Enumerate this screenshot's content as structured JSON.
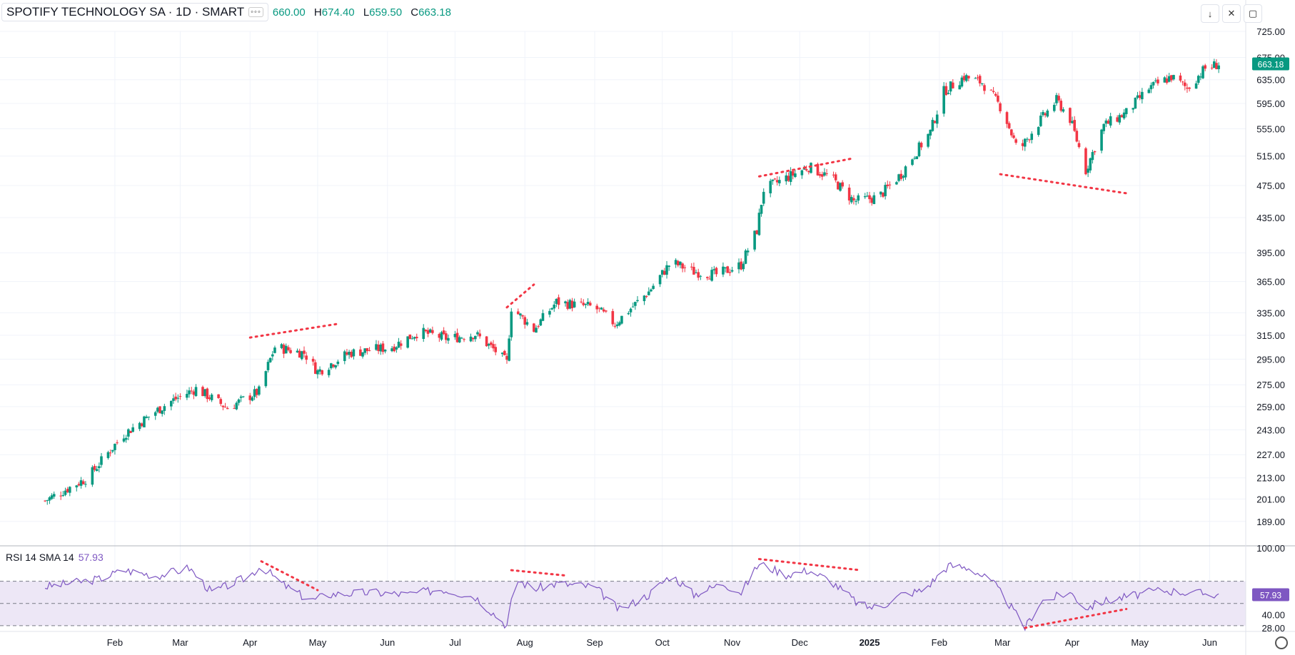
{
  "header": {
    "symbol": "SPOTIFY TECHNOLOGY SA · 1D · SMART",
    "menu_icon": "dots-icon",
    "ohlc": [
      {
        "k": "",
        "v": "660.00"
      },
      {
        "k": "H",
        "v": "674.40"
      },
      {
        "k": "L",
        "v": "659.50"
      },
      {
        "k": "C",
        "v": "663.18"
      }
    ]
  },
  "toolbar": [
    "arrow-down-icon",
    "collapse-icon",
    "maximize-icon"
  ],
  "colors": {
    "up": "#089981",
    "down": "#f23645",
    "rsi": "#7e57c2",
    "rsi_band": "#ede7f6",
    "annotation": "#f23645",
    "grid": "#f0f3fa"
  },
  "chart_data": [
    {
      "type": "candlestick",
      "log_scale": true,
      "ylim": [
        178.5,
        725
      ],
      "ticks_y": [
        189,
        201,
        213,
        227,
        243,
        259,
        275,
        295,
        315,
        335,
        365,
        395,
        435,
        475,
        515,
        555,
        595,
        635,
        675,
        725
      ],
      "tick_labels_y": [
        "189.00",
        "201.00",
        "213.00",
        "227.00",
        "243.00",
        "259.00",
        "275.00",
        "295.00",
        "315.00",
        "335.00",
        "365.00",
        "395.00",
        "435.00",
        "475.00",
        "515.00",
        "555.00",
        "595.00",
        "635.00",
        "675.00",
        "725.00"
      ],
      "last_price": "663.18",
      "x_months": [
        "Feb",
        "Mar",
        "Apr",
        "May",
        "Jun",
        "Jul",
        "Aug",
        "Sep",
        "Oct",
        "Nov",
        "Dec",
        "2025",
        "Feb",
        "Mar",
        "Apr",
        "May",
        "Jun"
      ],
      "anchors": [
        [
          "2024-01-01",
          200
        ],
        [
          "2024-01-20",
          213
        ],
        [
          "2024-02-05",
          240
        ],
        [
          "2024-02-25",
          262
        ],
        [
          "2024-03-08",
          272
        ],
        [
          "2024-03-22",
          258
        ],
        [
          "2024-04-05",
          270
        ],
        [
          "2024-04-12",
          305
        ],
        [
          "2024-04-25",
          300
        ],
        [
          "2024-05-01",
          285
        ],
        [
          "2024-05-15",
          300
        ],
        [
          "2024-06-03",
          305
        ],
        [
          "2024-06-15",
          318
        ],
        [
          "2024-06-28",
          312
        ],
        [
          "2024-07-10",
          316
        ],
        [
          "2024-07-20",
          300
        ],
        [
          "2024-07-24",
          292
        ],
        [
          "2024-07-26",
          340
        ],
        [
          "2024-08-05",
          320
        ],
        [
          "2024-08-15",
          345
        ],
        [
          "2024-09-01",
          340
        ],
        [
          "2024-09-10",
          325
        ],
        [
          "2024-09-25",
          355
        ],
        [
          "2024-10-05",
          385
        ],
        [
          "2024-10-15",
          375
        ],
        [
          "2024-10-25",
          372
        ],
        [
          "2024-11-05",
          382
        ],
        [
          "2024-11-12",
          420
        ],
        [
          "2024-11-15",
          470
        ],
        [
          "2024-11-25",
          485
        ],
        [
          "2024-12-05",
          500
        ],
        [
          "2024-12-15",
          485
        ],
        [
          "2024-12-25",
          455
        ],
        [
          "2025-01-05",
          460
        ],
        [
          "2025-01-15",
          490
        ],
        [
          "2025-01-28",
          550
        ],
        [
          "2025-02-03",
          615
        ],
        [
          "2025-02-12",
          640
        ],
        [
          "2025-02-20",
          630
        ],
        [
          "2025-03-01",
          585
        ],
        [
          "2025-03-08",
          520
        ],
        [
          "2025-03-15",
          555
        ],
        [
          "2025-03-25",
          600
        ],
        [
          "2025-03-31",
          570
        ],
        [
          "2025-04-07",
          495
        ],
        [
          "2025-04-15",
          560
        ],
        [
          "2025-04-25",
          580
        ],
        [
          "2025-05-05",
          620
        ],
        [
          "2025-05-15",
          640
        ],
        [
          "2025-05-22",
          620
        ],
        [
          "2025-05-30",
          655
        ],
        [
          "2025-06-05",
          663
        ]
      ]
    },
    {
      "type": "line",
      "title": "RSI 14 SMA 14",
      "last_value": "57.93",
      "ylim": [
        28,
        100
      ],
      "levels": [
        70,
        50,
        30
      ],
      "tick_labels_y": [
        "100.00",
        "40.00",
        "28.00"
      ],
      "anchors": [
        [
          "2024-01-01",
          65
        ],
        [
          "2024-01-25",
          72
        ],
        [
          "2024-02-05",
          80
        ],
        [
          "2024-02-20",
          75
        ],
        [
          "2024-03-05",
          82
        ],
        [
          "2024-03-15",
          60
        ],
        [
          "2024-03-31",
          74
        ],
        [
          "2024-04-06",
          84
        ],
        [
          "2024-04-15",
          68
        ],
        [
          "2024-04-28",
          52
        ],
        [
          "2024-05-05",
          58
        ],
        [
          "2024-05-25",
          60
        ],
        [
          "2024-06-10",
          58
        ],
        [
          "2024-06-25",
          63
        ],
        [
          "2024-07-10",
          56
        ],
        [
          "2024-07-24",
          30
        ],
        [
          "2024-07-28",
          72
        ],
        [
          "2024-08-05",
          63
        ],
        [
          "2024-08-15",
          68
        ],
        [
          "2024-09-01",
          65
        ],
        [
          "2024-09-12",
          44
        ],
        [
          "2024-09-25",
          58
        ],
        [
          "2024-10-05",
          76
        ],
        [
          "2024-10-15",
          58
        ],
        [
          "2024-10-28",
          68
        ],
        [
          "2024-11-05",
          60
        ],
        [
          "2024-11-13",
          86
        ],
        [
          "2024-11-25",
          76
        ],
        [
          "2024-12-05",
          80
        ],
        [
          "2024-12-15",
          70
        ],
        [
          "2024-12-28",
          48
        ],
        [
          "2025-01-05",
          46
        ],
        [
          "2025-01-15",
          58
        ],
        [
          "2025-01-25",
          62
        ],
        [
          "2025-02-05",
          84
        ],
        [
          "2025-02-15",
          82
        ],
        [
          "2025-02-25",
          68
        ],
        [
          "2025-03-01",
          58
        ],
        [
          "2025-03-11",
          28
        ],
        [
          "2025-03-18",
          52
        ],
        [
          "2025-03-31",
          60
        ],
        [
          "2025-04-07",
          46
        ],
        [
          "2025-04-15",
          52
        ],
        [
          "2025-04-25",
          56
        ],
        [
          "2025-05-10",
          62
        ],
        [
          "2025-05-22",
          60
        ],
        [
          "2025-06-05",
          58
        ]
      ]
    }
  ]
}
